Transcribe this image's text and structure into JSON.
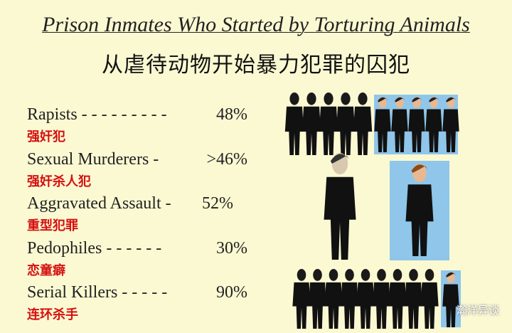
{
  "title": "Prison Inmates Who Started by Torturing Animals",
  "subtitle": "从虐待动物开始暴力犯罪的囚犯",
  "items": [
    {
      "label": "Rapists - - - - - - - - -",
      "value": "48%",
      "label_zh": "强奸犯"
    },
    {
      "label": "Sexual Murderers -",
      "value": ">46%",
      "label_zh": "强奸杀人犯"
    },
    {
      "label": "Aggravated Assault -",
      "value": "52%",
      "label_zh": "重型犯罪"
    },
    {
      "label": "Pedophiles - - - - - -",
      "value": "30%",
      "label_zh": "恋童癖"
    },
    {
      "label": "Serial Killers - - - - -",
      "value": "90%",
      "label_zh": "连环杀手"
    }
  ],
  "watermark": "瀚洋异谈"
}
